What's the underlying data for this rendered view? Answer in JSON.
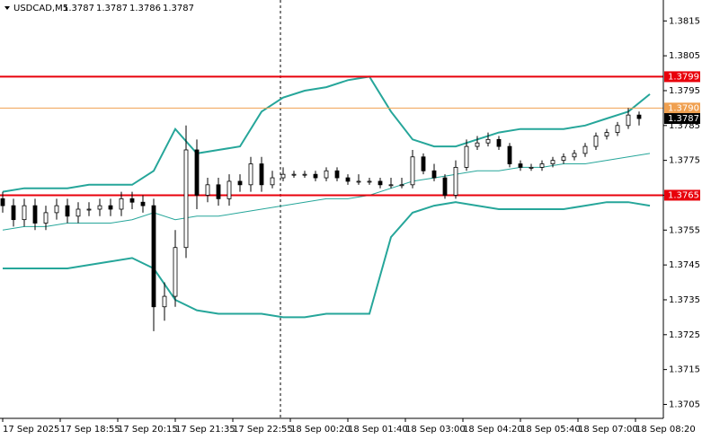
{
  "chart_data": {
    "type": "candlestick",
    "symbol": "USDCAD,M5",
    "header_prices": [
      1.3787,
      1.3787,
      1.3786,
      1.3787
    ],
    "x": [
      0,
      3,
      6,
      9,
      12,
      15,
      18,
      21,
      24,
      27,
      30,
      33,
      36,
      39,
      42,
      45,
      48,
      51,
      54,
      57,
      60,
      63,
      66,
      69,
      72,
      75,
      78,
      81,
      84,
      87,
      90,
      93,
      96,
      99,
      102,
      105,
      108,
      111,
      114,
      117,
      120,
      123,
      126,
      129,
      132,
      135,
      138,
      141,
      144,
      147,
      150,
      153,
      156,
      159,
      162,
      165,
      168,
      171,
      174,
      177
    ],
    "open": [
      1.3764,
      1.3762,
      1.3758,
      1.3762,
      1.3757,
      1.376,
      1.3762,
      1.3759,
      1.3761,
      1.3761,
      1.3762,
      1.3761,
      1.3764,
      1.3763,
      1.3762,
      1.3733,
      1.3736,
      1.375,
      1.3778,
      1.3765,
      1.3768,
      1.3764,
      1.3769,
      1.3768,
      1.3774,
      1.3768,
      1.377,
      1.3771,
      1.3771,
      1.3771,
      1.377,
      1.3772,
      1.377,
      1.3769,
      1.3769,
      1.3769,
      1.3768,
      1.3768,
      1.3768,
      1.3776,
      1.3772,
      1.377,
      1.3765,
      1.3773,
      1.3779,
      1.378,
      1.3781,
      1.3779,
      1.3774,
      1.3773,
      1.3773,
      1.3774,
      1.3775,
      1.3776,
      1.3777,
      1.3779,
      1.3782,
      1.3783,
      1.3785,
      1.3788
    ],
    "high": [
      1.3766,
      1.3764,
      1.3764,
      1.3764,
      1.3762,
      1.3764,
      1.3764,
      1.3763,
      1.3763,
      1.3764,
      1.3764,
      1.3766,
      1.3766,
      1.3765,
      1.3764,
      1.374,
      1.3755,
      1.3785,
      1.3781,
      1.377,
      1.377,
      1.3771,
      1.3771,
      1.3776,
      1.3776,
      1.3772,
      1.3773,
      1.3772,
      1.3772,
      1.3772,
      1.3773,
      1.3773,
      1.3771,
      1.3771,
      1.377,
      1.377,
      1.377,
      1.377,
      1.3778,
      1.3777,
      1.3774,
      1.3771,
      1.3775,
      1.3781,
      1.3782,
      1.3783,
      1.3782,
      1.378,
      1.3775,
      1.3774,
      1.3775,
      1.3776,
      1.3777,
      1.3778,
      1.378,
      1.3783,
      1.3784,
      1.3786,
      1.379,
      1.3789
    ],
    "low": [
      1.376,
      1.3756,
      1.3756,
      1.3755,
      1.3755,
      1.3758,
      1.3757,
      1.3757,
      1.3759,
      1.3759,
      1.3759,
      1.3759,
      1.3761,
      1.376,
      1.3726,
      1.3729,
      1.3733,
      1.3747,
      1.3761,
      1.3763,
      1.3762,
      1.3762,
      1.3766,
      1.3766,
      1.3766,
      1.3767,
      1.3769,
      1.377,
      1.377,
      1.3769,
      1.3769,
      1.3769,
      1.3768,
      1.3768,
      1.3768,
      1.3767,
      1.3767,
      1.3767,
      1.3767,
      1.3771,
      1.3769,
      1.3764,
      1.3764,
      1.3772,
      1.3778,
      1.3779,
      1.3778,
      1.3773,
      1.3772,
      1.3772,
      1.3772,
      1.3773,
      1.3774,
      1.3775,
      1.3776,
      1.3778,
      1.3781,
      1.3782,
      1.3784,
      1.3785
    ],
    "close": [
      1.3762,
      1.3758,
      1.3762,
      1.3757,
      1.376,
      1.3762,
      1.3759,
      1.3761,
      1.3761,
      1.3762,
      1.3761,
      1.3764,
      1.3763,
      1.3762,
      1.3733,
      1.3736,
      1.375,
      1.3778,
      1.3765,
      1.3768,
      1.3764,
      1.3769,
      1.3768,
      1.3774,
      1.3768,
      1.377,
      1.3771,
      1.3771,
      1.3771,
      1.377,
      1.3772,
      1.377,
      1.3769,
      1.3769,
      1.3769,
      1.3768,
      1.3768,
      1.3768,
      1.3776,
      1.3772,
      1.377,
      1.3765,
      1.3773,
      1.3779,
      1.378,
      1.3781,
      1.3779,
      1.3774,
      1.3773,
      1.3773,
      1.3774,
      1.3775,
      1.3776,
      1.3777,
      1.3779,
      1.3782,
      1.3783,
      1.3785,
      1.3788,
      1.3787
    ],
    "bands": {
      "color": "#26a69a",
      "x": [
        0,
        6,
        12,
        18,
        24,
        30,
        36,
        42,
        48,
        54,
        60,
        66,
        72,
        78,
        84,
        90,
        96,
        102,
        108,
        114,
        120,
        126,
        132,
        138,
        144,
        150,
        156,
        162,
        168,
        174,
        180
      ],
      "upper": [
        1.3766,
        1.3767,
        1.3767,
        1.3767,
        1.3768,
        1.3768,
        1.3768,
        1.3772,
        1.3784,
        1.3777,
        1.3778,
        1.3779,
        1.3789,
        1.3793,
        1.3795,
        1.3796,
        1.3798,
        1.3799,
        1.3789,
        1.3781,
        1.3779,
        1.3779,
        1.3781,
        1.3783,
        1.3784,
        1.3784,
        1.3784,
        1.3785,
        1.3787,
        1.3789,
        1.3794
      ],
      "middle": [
        1.3755,
        1.3756,
        1.3756,
        1.3757,
        1.3757,
        1.3757,
        1.3758,
        1.376,
        1.3758,
        1.3759,
        1.3759,
        1.376,
        1.3761,
        1.3762,
        1.3763,
        1.3764,
        1.3764,
        1.3765,
        1.3767,
        1.3769,
        1.377,
        1.3771,
        1.3772,
        1.3772,
        1.3773,
        1.3773,
        1.3774,
        1.3774,
        1.3775,
        1.3776,
        1.3777
      ],
      "lower": [
        1.3744,
        1.3744,
        1.3744,
        1.3744,
        1.3745,
        1.3746,
        1.3747,
        1.3744,
        1.3735,
        1.3732,
        1.3731,
        1.3731,
        1.3731,
        1.373,
        1.373,
        1.3731,
        1.3731,
        1.3731,
        1.3753,
        1.376,
        1.3762,
        1.3763,
        1.3762,
        1.3761,
        1.3761,
        1.3761,
        1.3761,
        1.3762,
        1.3763,
        1.3763,
        1.3762
      ]
    },
    "levels": [
      {
        "value": 1.3799,
        "color": "#e8000b"
      },
      {
        "value": 1.379,
        "label": "1.3790",
        "color": "#f0a050"
      },
      {
        "value": 1.3765,
        "color": "#e8000b"
      }
    ],
    "last_price": 1.3787,
    "xlim": [
      -0.75,
      183.75
    ],
    "ylim": [
      1.3701,
      1.3821
    ],
    "yticks": [
      1.3815,
      1.3805,
      1.3795,
      1.3785,
      1.3775,
      1.3765,
      1.3755,
      1.3745,
      1.3735,
      1.3725,
      1.3715,
      1.3705
    ],
    "xticks": [
      {
        "value": 0,
        "label": "17 Sep 2025"
      },
      {
        "value": 16,
        "label": "17 Sep 18:55"
      },
      {
        "value": 32,
        "label": "17 Sep 20:15"
      },
      {
        "value": 48,
        "label": "17 Sep 21:35"
      },
      {
        "value": 64,
        "label": "17 Sep 22:55"
      },
      {
        "value": 80,
        "label": "18 Sep 00:20"
      },
      {
        "value": 96,
        "label": "18 Sep 01:40"
      },
      {
        "value": 112,
        "label": "18 Sep 03:00"
      },
      {
        "value": 128,
        "label": "18 Sep 04:20"
      },
      {
        "value": 144,
        "label": "18 Sep 05:40"
      },
      {
        "value": 160,
        "label": "18 Sep 07:00"
      },
      {
        "value": 176,
        "label": "18 Sep 08:20"
      }
    ]
  }
}
